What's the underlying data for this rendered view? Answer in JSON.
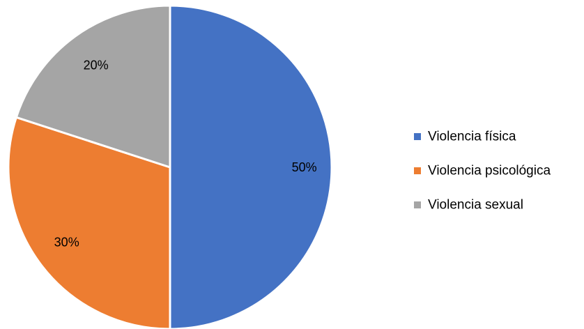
{
  "chart_data": {
    "type": "pie",
    "title": "",
    "categories": [
      "Violencia física",
      "Violencia psicológica",
      "Violencia sexual"
    ],
    "values": [
      50,
      30,
      20
    ],
    "data_labels": [
      "50%",
      "30%",
      "20%"
    ],
    "colors": [
      "#4472C4",
      "#ED7D31",
      "#A5A5A5"
    ],
    "start_angle_deg": 0,
    "direction": "clockwise",
    "legend": "right"
  }
}
